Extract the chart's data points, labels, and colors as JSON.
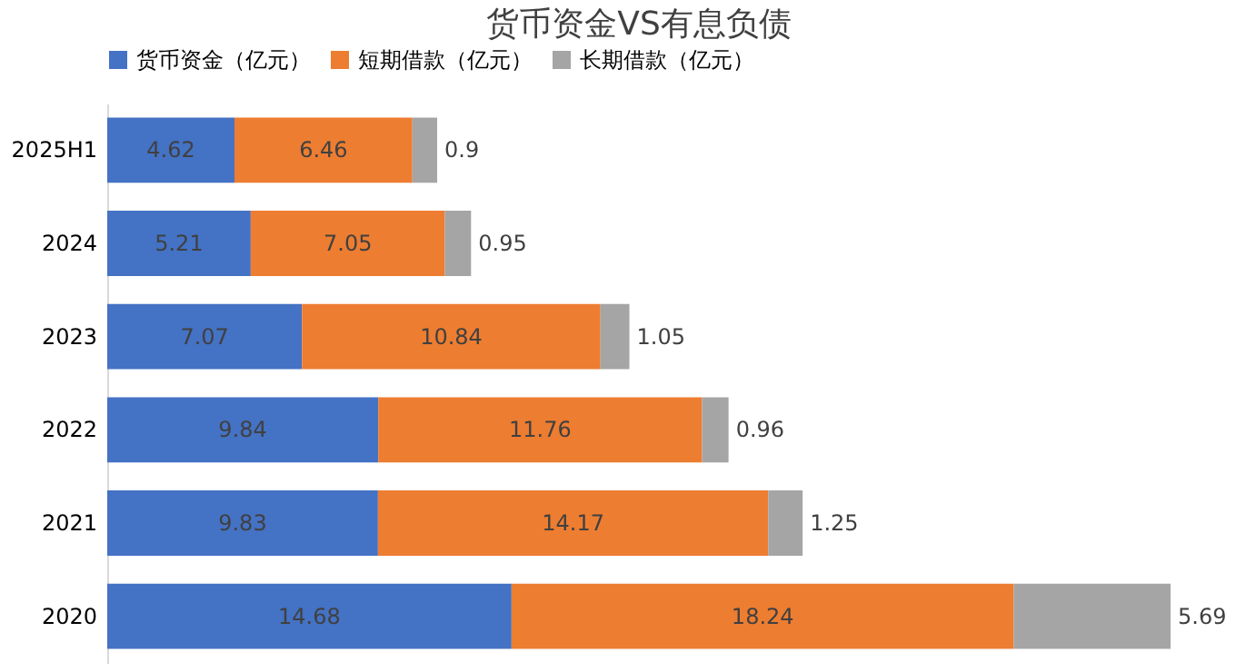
{
  "chart_data": {
    "type": "bar",
    "title": "货币资金VS有息负债",
    "orientation": "horizontal",
    "stacked": true,
    "data_labels": true,
    "legend": "top",
    "grid": false,
    "categories": [
      "2025H1",
      "2024",
      "2023",
      "2022",
      "2021",
      "2020"
    ],
    "series": [
      {
        "name": "货币资金（亿元）",
        "color": "#4472c4",
        "values": [
          4.62,
          5.21,
          7.07,
          9.84,
          9.83,
          14.68
        ]
      },
      {
        "name": "短期借款（亿元）",
        "color": "#ed7d31",
        "values": [
          6.46,
          7.05,
          10.84,
          11.76,
          14.17,
          18.24
        ]
      },
      {
        "name": "长期借款（亿元）",
        "color": "#a5a5a5",
        "values": [
          0.9,
          0.95,
          1.05,
          0.96,
          1.25,
          5.69
        ]
      }
    ]
  }
}
